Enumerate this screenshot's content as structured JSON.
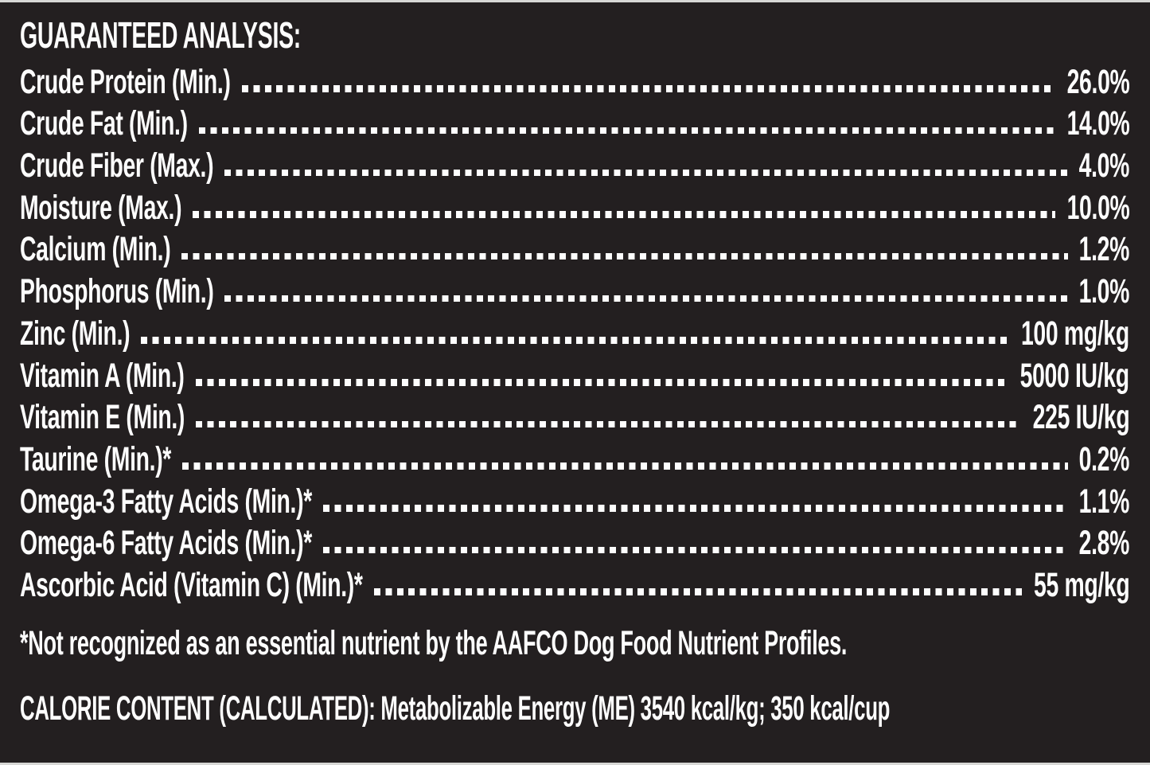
{
  "page": {
    "background_color": "#231f20",
    "text_color": "#fdfdfd",
    "edge_strip_color": "#d7d7d5"
  },
  "header": {
    "title": "GUARANTEED ANALYSIS:"
  },
  "analysis": {
    "rows": [
      {
        "label": "Crude Protein (Min.)",
        "value": "26.0%"
      },
      {
        "label": "Crude Fat (Min.)",
        "value": "14.0%"
      },
      {
        "label": "Crude Fiber (Max.)",
        "value": "4.0%"
      },
      {
        "label": "Moisture (Max.)",
        "value": "10.0%"
      },
      {
        "label": "Calcium (Min.)",
        "value": "1.2%"
      },
      {
        "label": "Phosphorus (Min.)",
        "value": "1.0%"
      },
      {
        "label": "Zinc (Min.)",
        "value": "100 mg/kg"
      },
      {
        "label": "Vitamin A (Min.)",
        "value": "5000 IU/kg"
      },
      {
        "label": "Vitamin E (Min.)",
        "value": "225 IU/kg"
      },
      {
        "label": "Taurine (Min.)*",
        "value": "0.2%"
      },
      {
        "label": "Omega-3 Fatty Acids (Min.)*",
        "value": "1.1%"
      },
      {
        "label": "Omega-6 Fatty Acids (Min.)*",
        "value": "2.8%"
      },
      {
        "label": "Ascorbic Acid (Vitamin C) (Min.)*",
        "value": "55 mg/kg"
      }
    ]
  },
  "footnote": "*Not recognized as an essential nutrient by the AAFCO Dog Food Nutrient Profiles.",
  "calorie_content": "CALORIE CONTENT (CALCULATED): Metabolizable Energy (ME) 3540 kcal/kg; 350 kcal/cup"
}
